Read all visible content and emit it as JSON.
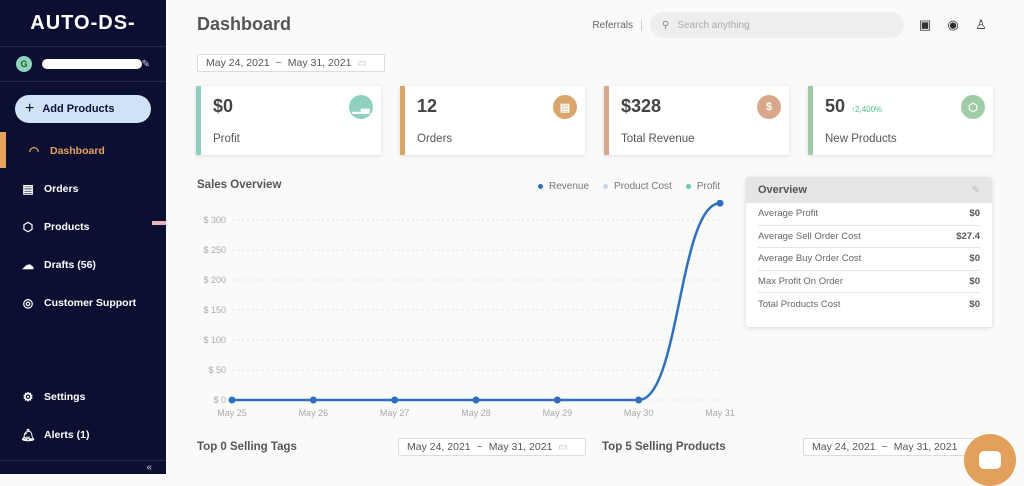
{
  "sidebar": {
    "logo": "AUTO-DS-",
    "user": {
      "initial": "G"
    },
    "add_button": "Add Products",
    "items": [
      {
        "label": "Dashboard",
        "icon": "gauge-icon",
        "active": true
      },
      {
        "label": "Orders",
        "icon": "clipboard-icon"
      },
      {
        "label": "Products",
        "icon": "box-icon"
      },
      {
        "label": "Drafts (56)",
        "icon": "cloud-upload-icon"
      },
      {
        "label": "Customer Support",
        "icon": "headset-icon"
      }
    ],
    "bottom_items": [
      {
        "label": "Settings",
        "icon": "gear-icon"
      },
      {
        "label": "Alerts (1)",
        "icon": "bell-icon"
      }
    ]
  },
  "header": {
    "title": "Dashboard",
    "referrals": "Referrals",
    "search_placeholder": "Search anything"
  },
  "date_range": {
    "start": "May 24, 2021",
    "sep": "~",
    "end": "May 31, 2021"
  },
  "cards": [
    {
      "value": "$0",
      "label": "Profit",
      "color": "#8fd0c0"
    },
    {
      "value": "12",
      "label": "Orders",
      "color": "#d9a56a"
    },
    {
      "value": "$328",
      "label": "Total Revenue",
      "color": "#d9a88a"
    },
    {
      "value": "50",
      "delta": "↑2,400%",
      "label": "New Products",
      "color": "#9fcca6"
    }
  ],
  "sales": {
    "title": "Sales Overview",
    "legend": [
      {
        "label": "Revenue",
        "color": "#2f6fbf"
      },
      {
        "label": "Product Cost",
        "color": "#c8d8ea"
      },
      {
        "label": "Profit",
        "color": "#6cc9b0"
      }
    ]
  },
  "chart_data": {
    "type": "line",
    "title": "Sales Overview",
    "categories": [
      "May 25",
      "May 26",
      "May 27",
      "May 28",
      "May 29",
      "May 30",
      "May 31"
    ],
    "series": [
      {
        "name": "Revenue",
        "values": [
          0,
          0,
          0,
          0,
          0,
          0,
          328
        ]
      },
      {
        "name": "Product Cost",
        "values": [
          0,
          0,
          0,
          0,
          0,
          0,
          0
        ]
      },
      {
        "name": "Profit",
        "values": [
          0,
          0,
          0,
          0,
          0,
          0,
          0
        ]
      }
    ],
    "yticks": [
      "$ 0",
      "$ 50",
      "$ 100",
      "$ 150",
      "$ 200",
      "$ 250",
      "$ 300"
    ],
    "ylim": [
      0,
      330
    ],
    "grid": true,
    "legend_position": "top-right"
  },
  "overview": {
    "title": "Overview",
    "rows": [
      {
        "label": "Average Profit",
        "value": "$0"
      },
      {
        "label": "Average Sell Order Cost",
        "value": "$27.4"
      },
      {
        "label": "Average Buy Order Cost",
        "value": "$0"
      },
      {
        "label": "Max Profit On Order",
        "value": "$0"
      },
      {
        "label": "Total Products Cost",
        "value": "$0"
      }
    ]
  },
  "sections": {
    "top_tags": "Top 0 Selling Tags",
    "top_products": "Top 5 Selling Products"
  }
}
